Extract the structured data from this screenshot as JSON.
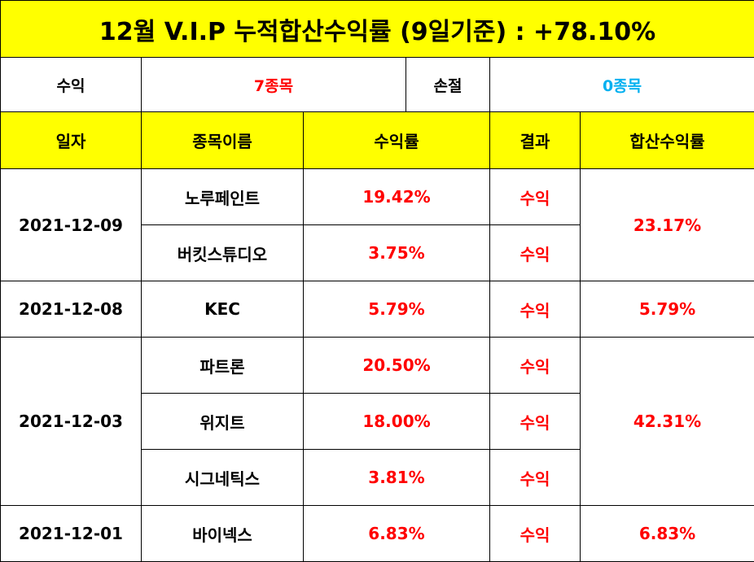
{
  "title": "12월 V.I.P 누적합산수익률 (9일기준) : +78.10%",
  "summary": {
    "profit_label": "수익",
    "profit_value": "7종목",
    "loss_label": "손절",
    "loss_value": "0종목"
  },
  "headers": {
    "date": "일자",
    "name": "종목이름",
    "return": "수익률",
    "result": "결과",
    "total": "합산수익률"
  },
  "groups": [
    {
      "date": "2021-12-09",
      "total": "23.17%",
      "rows": [
        {
          "name": "노루페인트",
          "return": "19.42%",
          "result": "수익"
        },
        {
          "name": "버킷스튜디오",
          "return": "3.75%",
          "result": "수익"
        }
      ]
    },
    {
      "date": "2021-12-08",
      "total": "5.79%",
      "rows": [
        {
          "name": "KEC",
          "return": "5.79%",
          "result": "수익"
        }
      ]
    },
    {
      "date": "2021-12-03",
      "total": "42.31%",
      "rows": [
        {
          "name": "파트론",
          "return": "20.50%",
          "result": "수익"
        },
        {
          "name": "위지트",
          "return": "18.00%",
          "result": "수익"
        },
        {
          "name": "시그네틱스",
          "return": "3.81%",
          "result": "수익"
        }
      ]
    },
    {
      "date": "2021-12-01",
      "total": "6.83%",
      "rows": [
        {
          "name": "바이넥스",
          "return": "6.83%",
          "result": "수익"
        }
      ]
    }
  ],
  "colors": {
    "header_bg": "#ffff00",
    "positive": "#ff0000",
    "zero_count": "#00b0f0",
    "border": "#000000"
  }
}
